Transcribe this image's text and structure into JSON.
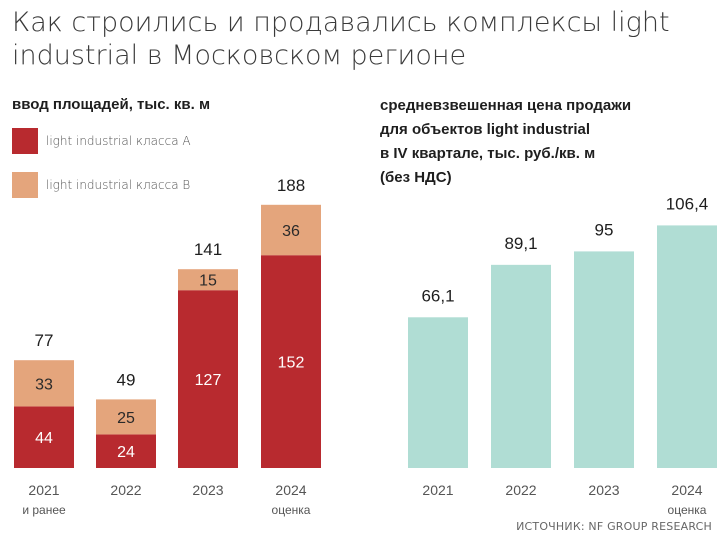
{
  "title_line1": "Как строились и продавались комплексы light",
  "title_line2": "industrial в Московском регионе",
  "source": "ИСТОЧНИК: NF GROUP RESEARCH",
  "colors": {
    "class_a": "#b82a2f",
    "class_b": "#e4a57c",
    "price": "#b0ddd4"
  },
  "chart_data": [
    {
      "type": "bar",
      "stacked": true,
      "title": "ввод площадей, тыс. кв. м",
      "categories": [
        [
          "2021",
          "и ранее"
        ],
        [
          "2022"
        ],
        [
          "2023"
        ],
        [
          "2024",
          "оценка"
        ]
      ],
      "series": [
        {
          "name": "light industrial класса А",
          "values": [
            44,
            24,
            127,
            152
          ]
        },
        {
          "name": "light industrial класса В",
          "values": [
            33,
            25,
            15,
            36
          ]
        }
      ],
      "totals": [
        77,
        49,
        141,
        188
      ],
      "legend": "top-left"
    },
    {
      "type": "bar",
      "title_lines": [
        "средневзвешенная цена продажи",
        "для объектов light industrial",
        "в IV квартале, тыс. руб./кв. м",
        "(без НДС)"
      ],
      "categories": [
        [
          "2021"
        ],
        [
          "2022"
        ],
        [
          "2023"
        ],
        [
          "2024",
          "оценка"
        ]
      ],
      "values": [
        66.1,
        89.1,
        95,
        106.4
      ],
      "value_labels": [
        "66,1",
        "89,1",
        "95",
        "106,4"
      ]
    }
  ]
}
